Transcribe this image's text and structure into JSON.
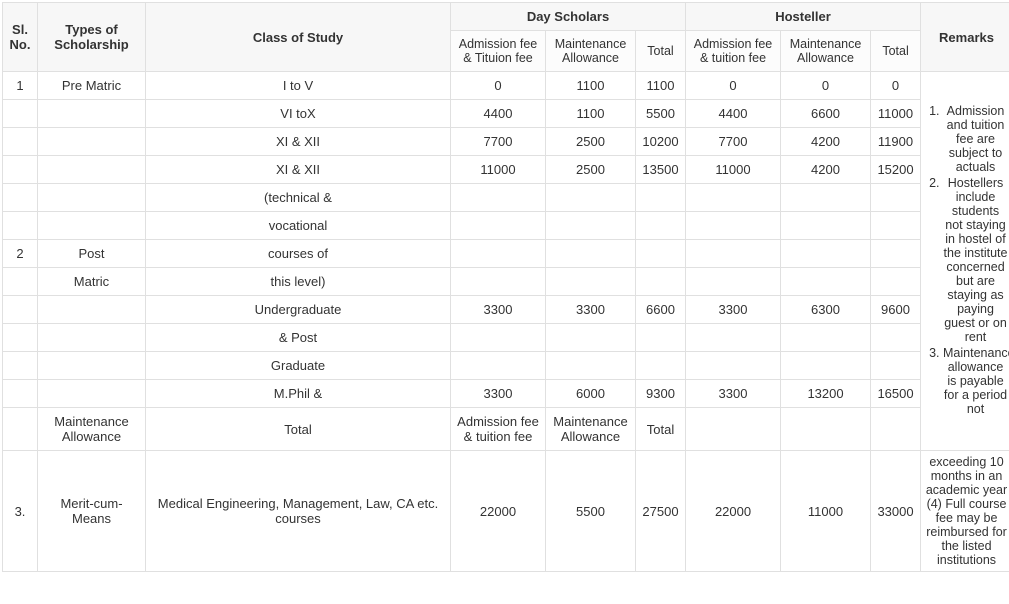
{
  "headers": {
    "sl_no": "Sl. No.",
    "types": "Types of Scholarship",
    "class_of_study": "Class of Study",
    "day_scholars": "Day Scholars",
    "hosteller": "Hosteller",
    "remarks": "Remarks",
    "admission_fee_tuition": "Admission fee & Tituion fee",
    "admission_fee_tuition2": "Admission fee & tuition fee",
    "maintenance_allowance": "Maintenance Allowance",
    "total": "Total"
  },
  "rows": [
    {
      "sl": "1",
      "type": "Pre Matric",
      "class": "I to V",
      "d_adm": "0",
      "d_maint": "1100",
      "d_total": "1100",
      "h_adm": "0",
      "h_maint": "0",
      "h_total": "0"
    },
    {
      "sl": "",
      "type": "",
      "class": "VI toX",
      "d_adm": "4400",
      "d_maint": "1100",
      "d_total": "5500",
      "h_adm": "4400",
      "h_maint": "6600",
      "h_total": "11000"
    },
    {
      "sl": "",
      "type": "",
      "class": "XI & XII",
      "d_adm": "7700",
      "d_maint": "2500",
      "d_total": "10200",
      "h_adm": "7700",
      "h_maint": "4200",
      "h_total": "11900"
    },
    {
      "sl": "",
      "type": "",
      "class": "XI & XII",
      "d_adm": "11000",
      "d_maint": "2500",
      "d_total": "13500",
      "h_adm": "11000",
      "h_maint": "4200",
      "h_total": "15200"
    },
    {
      "sl": "",
      "type": "",
      "class": "(technical &",
      "d_adm": "",
      "d_maint": "",
      "d_total": "",
      "h_adm": "",
      "h_maint": "",
      "h_total": ""
    },
    {
      "sl": "",
      "type": "",
      "class": "vocational",
      "d_adm": "",
      "d_maint": "",
      "d_total": "",
      "h_adm": "",
      "h_maint": "",
      "h_total": ""
    },
    {
      "sl": "2",
      "type": "Post",
      "class": "courses of",
      "d_adm": "",
      "d_maint": "",
      "d_total": "",
      "h_adm": "",
      "h_maint": "",
      "h_total": ""
    },
    {
      "sl": "",
      "type": "Matric",
      "class": "this level)",
      "d_adm": "",
      "d_maint": "",
      "d_total": "",
      "h_adm": "",
      "h_maint": "",
      "h_total": ""
    },
    {
      "sl": "",
      "type": "",
      "class": "Undergraduate",
      "d_adm": "3300",
      "d_maint": "3300",
      "d_total": "6600",
      "h_adm": "3300",
      "h_maint": "6300",
      "h_total": "9600"
    },
    {
      "sl": "",
      "type": "",
      "class": "& Post",
      "d_adm": "",
      "d_maint": "",
      "d_total": "",
      "h_adm": "",
      "h_maint": "",
      "h_total": ""
    },
    {
      "sl": "",
      "type": "",
      "class": "Graduate",
      "d_adm": "",
      "d_maint": "",
      "d_total": "",
      "h_adm": "",
      "h_maint": "",
      "h_total": ""
    },
    {
      "sl": "",
      "type": "",
      "class": "M.Phil &",
      "d_adm": "3300",
      "d_maint": "6000",
      "d_total": "9300",
      "h_adm": "3300",
      "h_maint": "13200",
      "h_total": "16500"
    }
  ],
  "mid_row": {
    "type": "Maintenance Allowance",
    "class": "Total",
    "d_adm": "Admission fee & tuition fee",
    "d_maint": "Maintenance Allowance",
    "d_total": "Total"
  },
  "row_merit": {
    "sl": "3.",
    "type": "Merit-cum-Means",
    "class": "Medical Engineering, Management, Law, CA etc. courses",
    "d_adm": "22000",
    "d_maint": "5500",
    "d_total": "27500",
    "h_adm": "22000",
    "h_maint": "11000",
    "h_total": "33000"
  },
  "remarks_list": [
    "Admission and tuition fee are subject to actuals",
    "Hostellers include students not staying in hostel of the institute concerned but are staying as paying guest or on rent",
    "Maintenance allowance is payable for a period not"
  ],
  "remarks_extra": "exceeding 10 months in an academic year (4) Full course fee may be reimbursed for the listed institutions"
}
